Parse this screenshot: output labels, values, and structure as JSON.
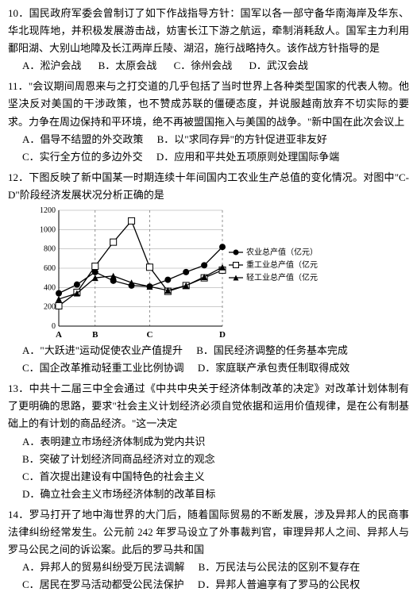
{
  "q10": {
    "text": "10．国民政府军委会曾制订了如下作战指导方针：国军以各一部守备华南海岸及华东、华北现阵地，并积极发展游击战，妨害长江下游之航运，牵制消耗敌人。国军主力利用鄱阳湖、大别山地障及长江两岸丘陵、湖沼，施行战略持久。该作战方针指导的是",
    "options": [
      "A．淞沪会战",
      "B．太原会战",
      "C．徐州会战",
      "D．武汉会战"
    ]
  },
  "q11": {
    "text": "11．\"会议期间周恩来与之打交道的几乎包括了当时世界上各种类型国家的代表人物。他坚决反对美国的干涉政策，也不赞成苏联的僵硬态度，并说服越南放弃不切实际的要求。力争在周边保持和平环境，绝不再被盟国拖入与美国的战争。\"新中国在此次会议上",
    "options": [
      "A．倡导不结盟的外交政策",
      "B．以\"求同存异\"的方针促进亚非友好",
      "C．实行全方位的多边外交",
      "D．应用和平共处五项原则处理国际争端"
    ]
  },
  "q12": {
    "text": "12．下图反映了新中国某一时期连续十年间国内工农业生产总值的变化情况。对图中\"C-D\"阶段经济发展状况分析正确的是",
    "options": [
      "A．\"大跃进\"运动促使农业产值提升",
      "B．国民经济调整的任务基本完成",
      "C．国企改革推动轻重工业比例协调",
      "D．家庭联产承包责任制取得成效"
    ]
  },
  "q13": {
    "text": "13．中共十二届三中全会通过《中共中央关于经济体制改革的决定》对改革计划体制有了更明确的思路，要求\"社会主义计划经济必须自觉依据和运用价值规律，是在公有制基础上的有计划的商品经济。\"这一决定",
    "options": [
      "A．表明建立市场经济体制成为党内共识",
      "B．突破了计划经济同商品经济对立的观念",
      "C．首次提出建设有中国特色的社会主义",
      "D．确立社会主义市场经济体制的改革目标"
    ]
  },
  "q14": {
    "text": "14．罗马打开了地中海世界的大门后，随着国际贸易的不断发展，涉及异邦人的民商事法律纠纷经常发生。公元前 242 年罗马设立了外事裁判官，审理异邦人之间、异邦人与罗马公民之间的诉讼案。此后的罗马共和国",
    "options": [
      "A．异邦人的贸易纠纷受万民法调解",
      "B．万民法与公民法的区别不复存在",
      "C．居民在罗马活动都受公民法保护",
      "D．异邦人普遍享有了罗马的公民权"
    ]
  },
  "chart": {
    "type": "line",
    "xlabels": [
      "A",
      "B",
      "C",
      "D"
    ],
    "xticks": [
      1,
      3,
      6,
      10
    ],
    "ylim": [
      0,
      1200
    ],
    "yticks": [
      0,
      200,
      400,
      600,
      800,
      1000,
      1200
    ],
    "series_labels": [
      "农业总产值（亿元）",
      "重工业总产值（亿元）",
      "轻工业总产值（亿元）"
    ],
    "series_markers": [
      "circle-filled",
      "square-open",
      "triangle-filled"
    ],
    "series_colors": [
      "#000000",
      "#000000",
      "#000000"
    ],
    "background_color": "#ffffff",
    "grid_color": "#999999",
    "line_width": 1.3,
    "marker_size": 4,
    "label_fontsize": 10,
    "agri": [
      340,
      430,
      560,
      470,
      420,
      410,
      480,
      560,
      630,
      820
    ],
    "heavy": [
      210,
      350,
      620,
      870,
      1090,
      610,
      360,
      420,
      500,
      580
    ],
    "light": [
      280,
      340,
      500,
      520,
      450,
      410,
      370,
      420,
      510,
      610
    ]
  }
}
